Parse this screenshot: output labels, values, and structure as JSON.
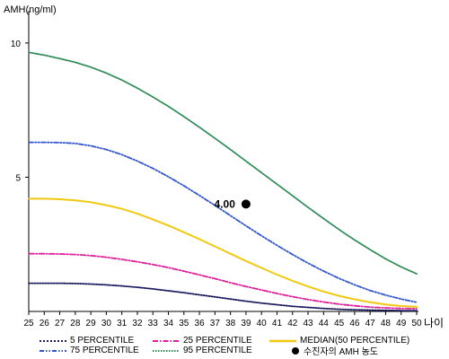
{
  "chart_data": {
    "type": "line",
    "ylabel": "AMH(ng/ml)",
    "xlabel": "나이",
    "x": [
      25,
      26,
      27,
      28,
      29,
      30,
      31,
      32,
      33,
      34,
      35,
      36,
      37,
      38,
      39,
      40,
      41,
      42,
      43,
      44,
      45,
      46,
      47,
      48,
      49,
      50
    ],
    "x_tick_labels": [
      "25",
      "26",
      "27",
      "28",
      "29",
      "30",
      "31",
      "32",
      "33",
      "34",
      "35",
      "36",
      "37",
      "38",
      "39",
      "40",
      "41",
      "42",
      "43",
      "44",
      "45",
      "46",
      "47",
      "48",
      "49",
      "50"
    ],
    "y_ticks": [
      5,
      10
    ],
    "y_tick_labels": [
      "5",
      "10"
    ],
    "xlim": [
      25,
      50
    ],
    "ylim": [
      0,
      11
    ],
    "grid": false,
    "series": [
      {
        "name": "5 PERCENTILE",
        "color": "#1a1a5e",
        "style": "dotted",
        "values": [
          1.05,
          1.05,
          1.05,
          1.04,
          1.02,
          0.99,
          0.95,
          0.9,
          0.84,
          0.77,
          0.7,
          0.62,
          0.54,
          0.46,
          0.38,
          0.31,
          0.25,
          0.19,
          0.15,
          0.11,
          0.08,
          0.06,
          0.05,
          0.04,
          0.03,
          0.03
        ]
      },
      {
        "name": "25 PERCENTILE",
        "color": "#e0209a",
        "style": "dashdot",
        "values": [
          2.15,
          2.15,
          2.14,
          2.12,
          2.08,
          2.02,
          1.94,
          1.85,
          1.75,
          1.63,
          1.5,
          1.36,
          1.22,
          1.07,
          0.93,
          0.8,
          0.67,
          0.55,
          0.44,
          0.35,
          0.27,
          0.21,
          0.16,
          0.13,
          0.11,
          0.1
        ]
      },
      {
        "name": "MEDIAN(50 PERCENTILE)",
        "color": "#f2c80f",
        "style": "solid",
        "values": [
          4.2,
          4.2,
          4.18,
          4.14,
          4.07,
          3.96,
          3.82,
          3.64,
          3.43,
          3.2,
          2.95,
          2.69,
          2.42,
          2.15,
          1.88,
          1.62,
          1.37,
          1.14,
          0.93,
          0.74,
          0.58,
          0.45,
          0.34,
          0.26,
          0.2,
          0.17
        ]
      },
      {
        "name": "75 PERCENTILE",
        "color": "#3355cc",
        "style": "dashdotdot",
        "values": [
          6.3,
          6.3,
          6.29,
          6.26,
          6.17,
          6.03,
          5.84,
          5.6,
          5.33,
          5.02,
          4.68,
          4.32,
          3.95,
          3.57,
          3.19,
          2.82,
          2.46,
          2.12,
          1.8,
          1.5,
          1.23,
          0.99,
          0.78,
          0.61,
          0.46,
          0.34
        ]
      },
      {
        "name": "95 PERCENTILE",
        "color": "#2e8b57",
        "style": "dotted",
        "values": [
          9.65,
          9.55,
          9.42,
          9.28,
          9.1,
          8.88,
          8.62,
          8.32,
          7.99,
          7.64,
          7.26,
          6.86,
          6.45,
          6.03,
          5.6,
          5.17,
          4.74,
          4.31,
          3.88,
          3.46,
          3.05,
          2.66,
          2.3,
          1.96,
          1.66,
          1.4
        ]
      }
    ],
    "patient_point": {
      "label": "수진자의 AMH 농도",
      "x": 39,
      "y": 4.0,
      "value_label": "4.00"
    }
  }
}
